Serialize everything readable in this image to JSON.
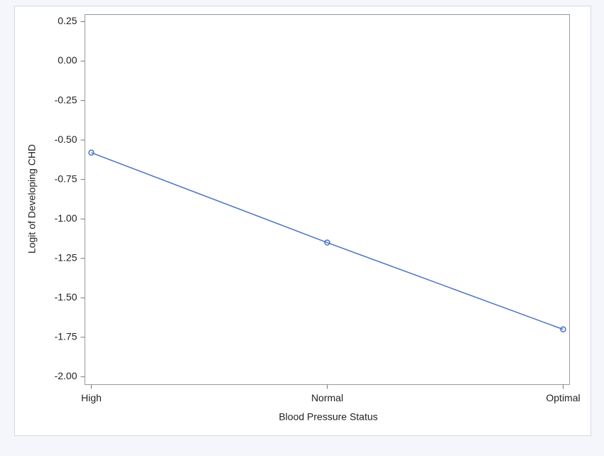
{
  "chart_data": {
    "type": "line",
    "x_label": "Blood Pressure Status",
    "y_label": "Logit of Developing CHD",
    "categories": [
      "High",
      "Normal",
      "Optimal"
    ],
    "series": [
      {
        "name": "Logit",
        "color": "#4a72c4",
        "values": [
          -0.58,
          -1.15,
          -1.7
        ]
      }
    ],
    "ylim": [
      -2.05,
      0.295
    ],
    "yticks": [
      0.25,
      {
        "value": 0,
        "label": "0.00"
      },
      -0.25,
      {
        "value": -0.5,
        "label": "-0.50"
      },
      -0.75,
      {
        "value": -1,
        "label": "-1.00"
      },
      -1.25,
      {
        "value": -1.5,
        "label": "-1.50"
      },
      -1.75,
      {
        "value": -2,
        "label": "-2.00"
      }
    ],
    "grid": false
  }
}
